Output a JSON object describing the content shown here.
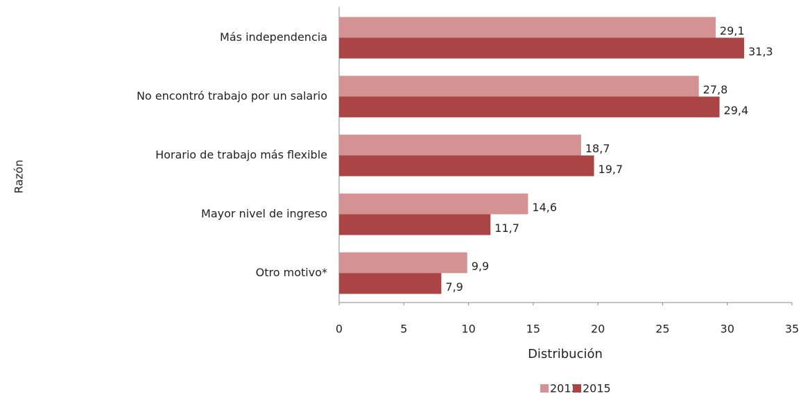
{
  "chart_data": {
    "type": "bar",
    "orientation": "horizontal",
    "x_label": "Distribución",
    "y_label": "Razón",
    "categories": [
      "Más independencia",
      "No encontró trabajo por un salario",
      "Horario de trabajo más flexible",
      "Mayor nivel de ingreso",
      "Otro motivo*"
    ],
    "series": [
      {
        "name": "2013",
        "color": "#d49392",
        "values": [
          29.1,
          27.8,
          18.7,
          14.6,
          9.9
        ],
        "value_labels": [
          "29,1",
          "27,8",
          "18,7",
          "14,6",
          "9,9"
        ]
      },
      {
        "name": "2015",
        "color": "#ab4545",
        "values": [
          31.3,
          29.4,
          19.7,
          11.7,
          7.9
        ],
        "value_labels": [
          "31,3",
          "29,4",
          "19,7",
          "11,7",
          "7,9"
        ]
      }
    ],
    "xlim": [
      0,
      35
    ],
    "xticks": [
      0,
      5,
      10,
      15,
      20,
      25,
      30,
      35
    ],
    "grid": false,
    "legend": "bottom"
  }
}
